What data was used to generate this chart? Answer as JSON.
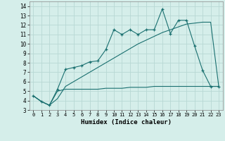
{
  "xlabel": "Humidex (Indice chaleur)",
  "background_color": "#d5eeea",
  "grid_color": "#b8d8d4",
  "line_color": "#1a7070",
  "xlim": [
    -0.5,
    23.5
  ],
  "ylim": [
    3,
    14.5
  ],
  "yticks": [
    3,
    4,
    5,
    6,
    7,
    8,
    9,
    10,
    11,
    12,
    13,
    14
  ],
  "xticks": [
    0,
    1,
    2,
    3,
    4,
    5,
    6,
    7,
    8,
    9,
    10,
    11,
    12,
    13,
    14,
    15,
    16,
    17,
    18,
    19,
    20,
    21,
    22,
    23
  ],
  "line1_x": [
    0,
    1,
    2,
    3,
    4,
    5,
    6,
    7,
    8,
    9,
    10,
    11,
    12,
    13,
    14,
    15,
    16,
    17,
    18,
    19,
    20,
    21,
    22,
    23
  ],
  "line1_y": [
    4.5,
    3.9,
    3.5,
    5.2,
    7.3,
    7.5,
    7.7,
    8.1,
    8.2,
    9.4,
    11.5,
    11.0,
    11.5,
    11.0,
    11.5,
    11.5,
    13.7,
    11.1,
    12.5,
    12.5,
    9.8,
    7.2,
    5.5,
    5.5
  ],
  "line2_x": [
    0,
    1,
    2,
    3,
    4,
    5,
    6,
    7,
    8,
    9,
    10,
    11,
    12,
    13,
    14,
    15,
    16,
    17,
    18,
    19,
    20,
    21,
    22,
    23
  ],
  "line2_y": [
    4.5,
    3.9,
    3.5,
    5.0,
    5.2,
    5.2,
    5.2,
    5.2,
    5.2,
    5.3,
    5.3,
    5.3,
    5.4,
    5.4,
    5.4,
    5.5,
    5.5,
    5.5,
    5.5,
    5.5,
    5.5,
    5.5,
    5.5,
    5.5
  ],
  "line3_x": [
    0,
    1,
    2,
    3,
    4,
    5,
    6,
    7,
    8,
    9,
    10,
    11,
    12,
    13,
    14,
    15,
    16,
    17,
    18,
    19,
    20,
    21,
    22,
    23
  ],
  "line3_y": [
    4.5,
    3.9,
    3.5,
    4.2,
    5.5,
    6.0,
    6.5,
    7.0,
    7.5,
    8.0,
    8.5,
    9.0,
    9.5,
    10.0,
    10.4,
    10.8,
    11.2,
    11.5,
    11.8,
    12.1,
    12.2,
    12.3,
    12.3,
    5.5
  ]
}
